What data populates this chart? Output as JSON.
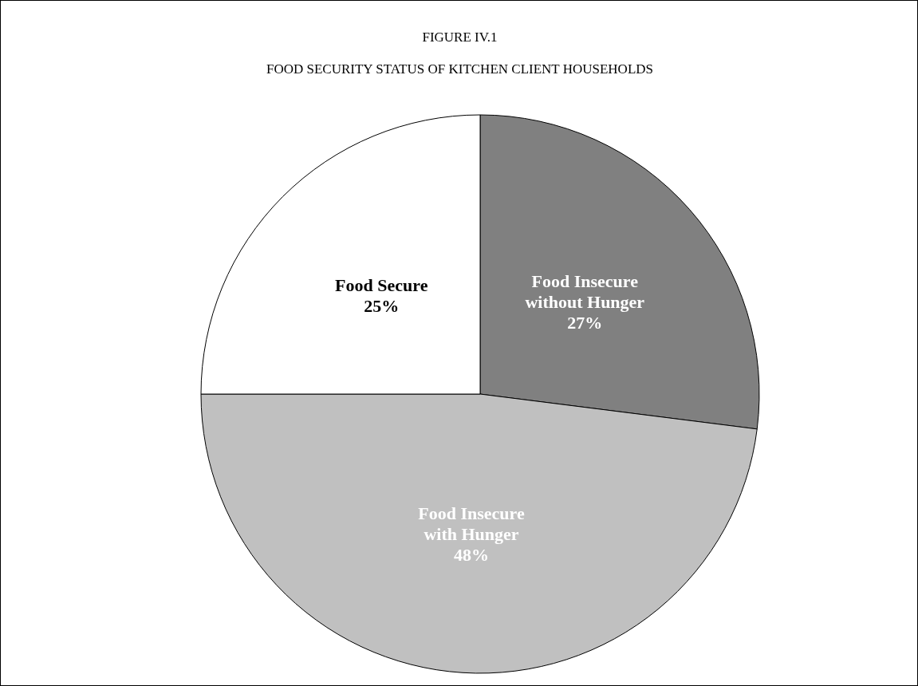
{
  "chart_data": {
    "type": "pie",
    "title": "FIGURE IV.1",
    "subtitle": "FOOD SECURITY STATUS OF KITCHEN CLIENT HOUSEHOLDS",
    "categories": [
      "Food Insecure without Hunger",
      "Food Insecure with Hunger",
      "Food Secure"
    ],
    "values": [
      27,
      48,
      25
    ],
    "colors": [
      "#808080",
      "#c0c0c0",
      "#ffffff"
    ],
    "value_labels": [
      "27%",
      "48%",
      "25%"
    ],
    "legend": false
  }
}
